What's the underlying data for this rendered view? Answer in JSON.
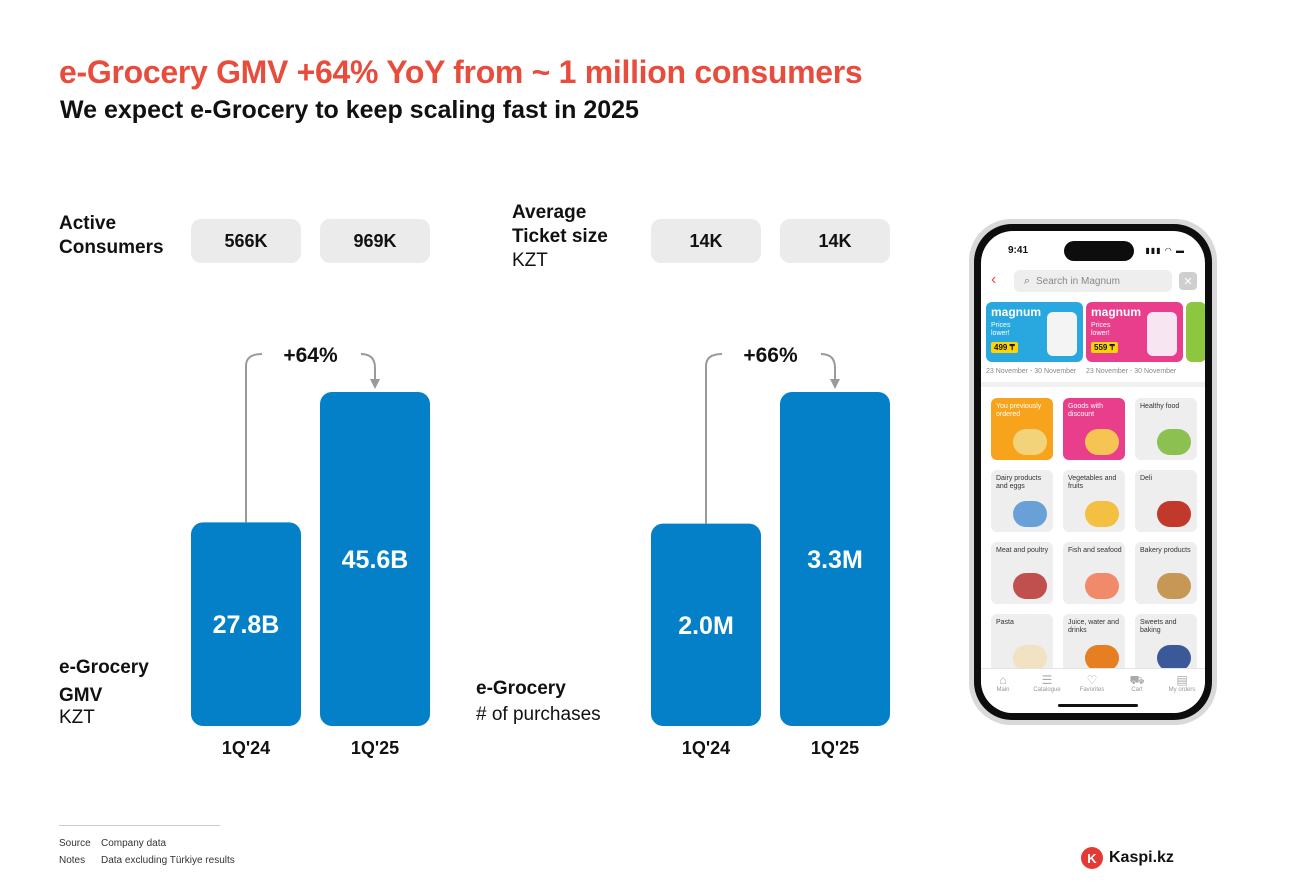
{
  "header": {
    "title": "e-Grocery GMV +64% YoY from ~ 1 million consumers",
    "subtitle": "We expect e-Grocery to keep scaling fast in 2025"
  },
  "left_panel": {
    "top_label_line1": "Active",
    "top_label_line2": "Consumers",
    "pills": [
      "566K",
      "969K"
    ],
    "bottom_label_line1": "e-Grocery",
    "bottom_label_line2": "GMV",
    "bottom_label_unit": "KZT"
  },
  "right_panel": {
    "top_label_line1": "Average",
    "top_label_line2": "Ticket size",
    "top_label_unit": "KZT",
    "pills": [
      "14K",
      "14K"
    ],
    "bottom_label_line1": "e-Grocery",
    "bottom_label_line2": "# of purchases"
  },
  "chart_data": [
    {
      "type": "bar",
      "title": "e-Grocery GMV",
      "ylabel": "KZT",
      "categories": [
        "1Q'24",
        "1Q'25"
      ],
      "values": [
        27.8,
        45.6
      ],
      "value_labels": [
        "27.8B",
        "45.6B"
      ],
      "unit": "B KZT",
      "growth_label": "+64%",
      "ylim": [
        0,
        45.6
      ]
    },
    {
      "type": "bar",
      "title": "e-Grocery # of purchases",
      "categories": [
        "1Q'24",
        "1Q'25"
      ],
      "values": [
        2.0,
        3.3
      ],
      "value_labels": [
        "2.0M",
        "3.3M"
      ],
      "unit": "M purchases",
      "growth_label": "+66%",
      "ylim": [
        0,
        3.3
      ]
    }
  ],
  "phone": {
    "time": "9:41",
    "search_placeholder": "Search in Magnum",
    "promos": [
      {
        "brand": "magnum",
        "text": "Prices lower!",
        "price": "499 ₸",
        "date": "23 November - 30 November"
      },
      {
        "brand": "magnum",
        "text": "Prices lower!",
        "price": "559 ₸",
        "date": "23 November - 30 November"
      }
    ],
    "categories": [
      "You previously ordered",
      "Goods with discount",
      "Healthy food",
      "Dairy products and eggs",
      "Vegetables and fruits",
      "Deli",
      "Meat and poultry",
      "Fish and seafood",
      "Bakery products",
      "Pasta",
      "Juice, water and drinks",
      "Sweets and baking"
    ],
    "tabs": [
      "Main",
      "Catalogue",
      "Favorites",
      "Cart",
      "My orders"
    ]
  },
  "footer": {
    "source_label": "Source",
    "source_value": "Company data",
    "notes_label": "Notes",
    "notes_value": "Data excluding Türkiye results"
  },
  "brand": {
    "name": "Kaspi.kz",
    "accent": "#e53935"
  },
  "colors": {
    "bar": "#0480c8",
    "title": "#e74c3c",
    "pill": "#ebebeb"
  }
}
